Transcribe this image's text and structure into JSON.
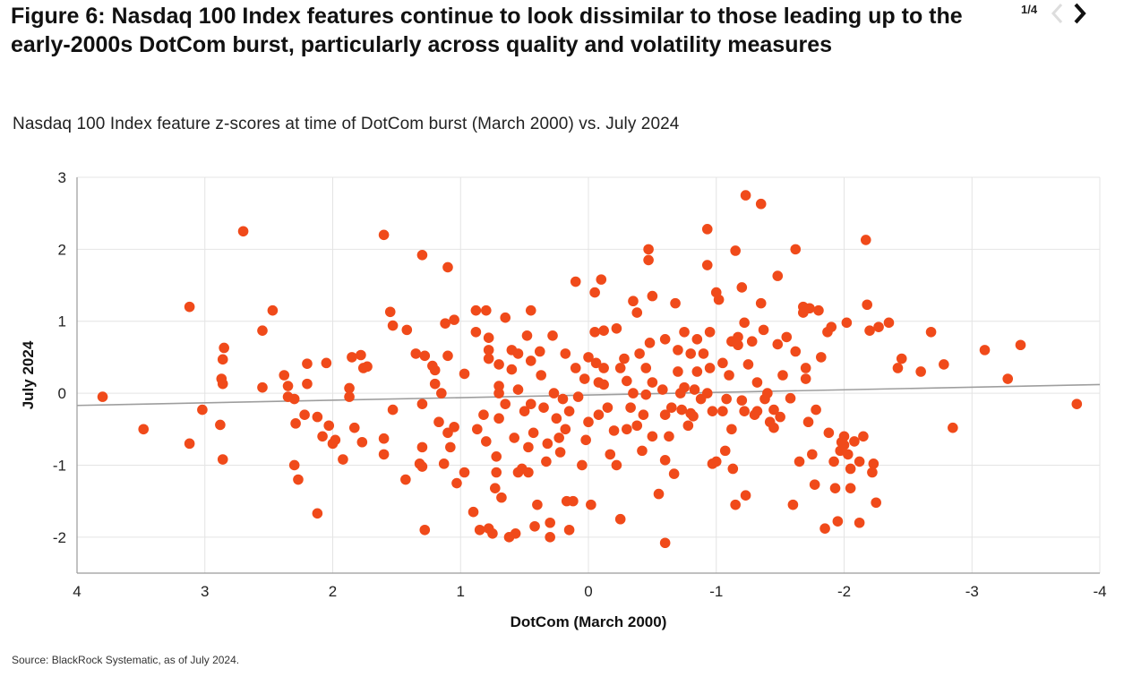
{
  "header": {
    "title": "Figure 6: Nasdaq 100 Index features continue to look dissimilar to those leading up to the early-2000s DotCom burst, particularly across quality and volatility measures",
    "page_indicator": "1/4",
    "prev_icon": "chevron-left-icon",
    "next_icon": "chevron-right-icon"
  },
  "subtitle": "Nasdaq 100 Index feature z-scores at time of DotCom burst (March 2000) vs. July 2024",
  "source": "Source: BlackRock Systematic, as of July 2024.",
  "colors": {
    "points": "#f04a1a",
    "trendline": "#9e9e9e",
    "grid": "#e4e4e4",
    "axis": "#9a9a9a"
  },
  "chart_data": {
    "type": "scatter",
    "xlabel": "DotCom (March 2000)",
    "ylabel": "July 2024",
    "xlim": [
      4,
      -4
    ],
    "ylim": [
      -2.5,
      3
    ],
    "x_reversed": true,
    "grid": true,
    "xticks": [
      4,
      3,
      2,
      1,
      0,
      -1,
      -2,
      -3,
      -4
    ],
    "xtick_labels": [
      "4",
      "3",
      "2",
      "1",
      "0",
      "-1",
      "-2",
      "-3",
      "-4"
    ],
    "yticks": [
      3,
      2,
      1,
      0,
      -1,
      -2
    ],
    "ytick_labels": [
      "3",
      "2",
      "1",
      "0",
      "-1",
      "-2"
    ],
    "trendline": {
      "x": [
        4,
        -4
      ],
      "y": [
        -0.17,
        0.12
      ]
    },
    "points": [
      [
        3.8,
        -0.05
      ],
      [
        3.48,
        -0.5
      ],
      [
        3.12,
        1.2
      ],
      [
        3.12,
        -0.7
      ],
      [
        3.02,
        -0.23
      ],
      [
        2.7,
        2.25
      ],
      [
        2.85,
        0.63
      ],
      [
        2.86,
        0.47
      ],
      [
        2.87,
        0.2
      ],
      [
        2.86,
        0.13
      ],
      [
        2.88,
        -0.44
      ],
      [
        2.86,
        -0.92
      ],
      [
        2.55,
        0.87
      ],
      [
        2.47,
        1.15
      ],
      [
        2.55,
        0.08
      ],
      [
        2.38,
        0.25
      ],
      [
        2.35,
        0.1
      ],
      [
        2.35,
        -0.05
      ],
      [
        2.3,
        -0.08
      ],
      [
        2.29,
        -0.42
      ],
      [
        2.3,
        -1.0
      ],
      [
        2.27,
        -1.2
      ],
      [
        2.22,
        -0.3
      ],
      [
        2.2,
        0.41
      ],
      [
        2.2,
        0.13
      ],
      [
        2.12,
        -0.33
      ],
      [
        2.12,
        -1.67
      ],
      [
        2.08,
        -0.6
      ],
      [
        2.05,
        0.42
      ],
      [
        2.03,
        -0.45
      ],
      [
        2.0,
        -0.7
      ],
      [
        1.98,
        -0.65
      ],
      [
        1.92,
        -0.92
      ],
      [
        1.87,
        0.07
      ],
      [
        1.87,
        -0.05
      ],
      [
        1.85,
        0.5
      ],
      [
        1.83,
        -0.48
      ],
      [
        1.78,
        0.53
      ],
      [
        1.77,
        -0.68
      ],
      [
        1.76,
        0.35
      ],
      [
        1.73,
        0.37
      ],
      [
        1.6,
        2.2
      ],
      [
        1.6,
        -0.63
      ],
      [
        1.6,
        -0.85
      ],
      [
        1.55,
        1.13
      ],
      [
        1.53,
        0.94
      ],
      [
        1.53,
        -0.23
      ],
      [
        1.42,
        0.88
      ],
      [
        1.43,
        -1.2
      ],
      [
        1.35,
        0.55
      ],
      [
        1.3,
        1.92
      ],
      [
        1.3,
        -0.15
      ],
      [
        1.28,
        0.52
      ],
      [
        1.32,
        -0.98
      ],
      [
        1.3,
        -1.02
      ],
      [
        1.3,
        -0.75
      ],
      [
        1.28,
        -1.9
      ],
      [
        1.22,
        0.38
      ],
      [
        1.2,
        0.32
      ],
      [
        1.2,
        0.13
      ],
      [
        1.17,
        -0.4
      ],
      [
        1.15,
        0.0
      ],
      [
        1.13,
        -0.98
      ],
      [
        1.1,
        1.75
      ],
      [
        1.12,
        0.97
      ],
      [
        1.1,
        0.52
      ],
      [
        1.1,
        -0.55
      ],
      [
        1.08,
        -0.75
      ],
      [
        1.05,
        1.02
      ],
      [
        1.05,
        -0.47
      ],
      [
        1.03,
        -1.25
      ],
      [
        0.97,
        0.27
      ],
      [
        0.97,
        -1.1
      ],
      [
        0.9,
        -1.65
      ],
      [
        0.88,
        1.15
      ],
      [
        0.88,
        0.85
      ],
      [
        0.87,
        -0.5
      ],
      [
        0.85,
        -1.9
      ],
      [
        0.82,
        -0.3
      ],
      [
        0.8,
        1.15
      ],
      [
        0.8,
        -0.67
      ],
      [
        0.78,
        0.77
      ],
      [
        0.78,
        0.6
      ],
      [
        0.78,
        0.48
      ],
      [
        0.78,
        -1.88
      ],
      [
        0.75,
        -1.95
      ],
      [
        0.73,
        -1.32
      ],
      [
        0.72,
        -0.88
      ],
      [
        0.72,
        -1.1
      ],
      [
        0.7,
        0.4
      ],
      [
        0.7,
        0.1
      ],
      [
        0.7,
        0.0
      ],
      [
        0.7,
        -0.35
      ],
      [
        0.68,
        -1.45
      ],
      [
        0.65,
        1.05
      ],
      [
        0.65,
        -0.15
      ],
      [
        0.62,
        -2.0
      ],
      [
        0.6,
        0.6
      ],
      [
        0.6,
        0.33
      ],
      [
        0.58,
        -0.62
      ],
      [
        0.57,
        -1.95
      ],
      [
        0.55,
        0.55
      ],
      [
        0.55,
        0.05
      ],
      [
        0.55,
        -1.1
      ],
      [
        0.52,
        -1.05
      ],
      [
        0.5,
        -0.25
      ],
      [
        0.48,
        0.8
      ],
      [
        0.47,
        -0.75
      ],
      [
        0.47,
        -1.1
      ],
      [
        0.45,
        1.15
      ],
      [
        0.45,
        0.45
      ],
      [
        0.45,
        -0.15
      ],
      [
        0.43,
        -0.55
      ],
      [
        0.42,
        -1.85
      ],
      [
        0.4,
        -1.55
      ],
      [
        0.38,
        0.58
      ],
      [
        0.37,
        0.25
      ],
      [
        0.35,
        -0.2
      ],
      [
        0.33,
        -0.95
      ],
      [
        0.32,
        -0.7
      ],
      [
        0.3,
        -2.0
      ],
      [
        0.3,
        -1.8
      ],
      [
        0.28,
        0.8
      ],
      [
        0.27,
        0.0
      ],
      [
        0.25,
        -0.35
      ],
      [
        0.23,
        -0.62
      ],
      [
        0.22,
        -0.82
      ],
      [
        0.2,
        -0.08
      ],
      [
        0.18,
        0.55
      ],
      [
        0.18,
        -0.5
      ],
      [
        0.17,
        -1.5
      ],
      [
        0.15,
        -1.9
      ],
      [
        0.15,
        -0.25
      ],
      [
        0.12,
        -1.5
      ],
      [
        0.1,
        1.55
      ],
      [
        0.1,
        0.35
      ],
      [
        0.08,
        -0.05
      ],
      [
        0.05,
        -1.0
      ],
      [
        0.03,
        0.2
      ],
      [
        0.02,
        -0.65
      ],
      [
        0.0,
        0.5
      ],
      [
        0.0,
        -0.4
      ],
      [
        -0.02,
        -1.55
      ],
      [
        -0.05,
        1.4
      ],
      [
        -0.05,
        0.85
      ],
      [
        -0.06,
        0.42
      ],
      [
        -0.08,
        0.15
      ],
      [
        -0.08,
        -0.3
      ],
      [
        -0.1,
        1.58
      ],
      [
        -0.12,
        0.87
      ],
      [
        -0.12,
        0.35
      ],
      [
        -0.12,
        0.12
      ],
      [
        -0.15,
        -0.2
      ],
      [
        -0.17,
        -0.85
      ],
      [
        -0.2,
        -0.52
      ],
      [
        -0.22,
        0.9
      ],
      [
        -0.22,
        -1.0
      ],
      [
        -0.25,
        0.35
      ],
      [
        -0.25,
        -1.75
      ],
      [
        -0.28,
        0.48
      ],
      [
        -0.3,
        0.17
      ],
      [
        -0.3,
        -0.5
      ],
      [
        -0.33,
        -0.2
      ],
      [
        -0.35,
        1.28
      ],
      [
        -0.35,
        0.0
      ],
      [
        -0.38,
        1.12
      ],
      [
        -0.38,
        -0.45
      ],
      [
        -0.4,
        0.55
      ],
      [
        -0.42,
        -0.8
      ],
      [
        -0.43,
        -0.3
      ],
      [
        -0.45,
        0.35
      ],
      [
        -0.45,
        -0.02
      ],
      [
        -0.47,
        2.0
      ],
      [
        -0.47,
        1.85
      ],
      [
        -0.48,
        0.7
      ],
      [
        -0.5,
        1.35
      ],
      [
        -0.5,
        0.15
      ],
      [
        -0.5,
        -0.6
      ],
      [
        -0.55,
        -1.4
      ],
      [
        -0.58,
        0.05
      ],
      [
        -0.6,
        0.75
      ],
      [
        -0.6,
        -0.3
      ],
      [
        -0.6,
        -0.93
      ],
      [
        -0.6,
        -2.08
      ],
      [
        -0.63,
        -0.6
      ],
      [
        -0.65,
        -0.2
      ],
      [
        -0.67,
        -1.12
      ],
      [
        -0.68,
        1.25
      ],
      [
        -0.7,
        0.6
      ],
      [
        -0.7,
        0.3
      ],
      [
        -0.72,
        0.0
      ],
      [
        -0.73,
        -0.23
      ],
      [
        -0.75,
        0.85
      ],
      [
        -0.75,
        0.08
      ],
      [
        -0.78,
        -0.45
      ],
      [
        -0.8,
        0.55
      ],
      [
        -0.8,
        -0.28
      ],
      [
        -0.82,
        -0.32
      ],
      [
        -0.83,
        0.05
      ],
      [
        -0.85,
        0.3
      ],
      [
        -0.85,
        0.75
      ],
      [
        -0.88,
        -0.08
      ],
      [
        -0.9,
        0.55
      ],
      [
        -0.93,
        2.28
      ],
      [
        -0.93,
        1.78
      ],
      [
        -0.93,
        0.0
      ],
      [
        -0.95,
        0.85
      ],
      [
        -0.95,
        0.35
      ],
      [
        -0.97,
        -0.25
      ],
      [
        -0.97,
        -0.98
      ],
      [
        -1.0,
        1.4
      ],
      [
        -1.0,
        -0.95
      ],
      [
        -1.02,
        1.3
      ],
      [
        -1.05,
        0.42
      ],
      [
        -1.05,
        -0.25
      ],
      [
        -1.07,
        -0.8
      ],
      [
        -1.08,
        -0.08
      ],
      [
        -1.1,
        0.25
      ],
      [
        -1.12,
        0.72
      ],
      [
        -1.12,
        -0.5
      ],
      [
        -1.13,
        -1.05
      ],
      [
        -1.15,
        1.98
      ],
      [
        -1.15,
        -1.55
      ],
      [
        -1.17,
        0.78
      ],
      [
        -1.17,
        0.67
      ],
      [
        -1.2,
        1.47
      ],
      [
        -1.2,
        -0.1
      ],
      [
        -1.22,
        0.98
      ],
      [
        -1.22,
        -0.25
      ],
      [
        -1.23,
        2.75
      ],
      [
        -1.23,
        -1.42
      ],
      [
        -1.25,
        0.4
      ],
      [
        -1.28,
        0.72
      ],
      [
        -1.3,
        -0.3
      ],
      [
        -1.32,
        -0.25
      ],
      [
        -1.32,
        0.15
      ],
      [
        -1.35,
        2.63
      ],
      [
        -1.35,
        1.25
      ],
      [
        -1.37,
        0.88
      ],
      [
        -1.38,
        -0.08
      ],
      [
        -1.4,
        0.0
      ],
      [
        -1.42,
        -0.4
      ],
      [
        -1.45,
        -0.23
      ],
      [
        -1.45,
        -0.48
      ],
      [
        -1.48,
        1.63
      ],
      [
        -1.48,
        0.68
      ],
      [
        -1.5,
        -0.33
      ],
      [
        -1.52,
        0.25
      ],
      [
        -1.55,
        0.78
      ],
      [
        -1.58,
        -0.07
      ],
      [
        -1.6,
        -1.55
      ],
      [
        -1.62,
        2.0
      ],
      [
        -1.62,
        0.58
      ],
      [
        -1.65,
        -0.95
      ],
      [
        -1.68,
        1.2
      ],
      [
        -1.68,
        1.12
      ],
      [
        -1.7,
        0.35
      ],
      [
        -1.7,
        0.2
      ],
      [
        -1.72,
        -0.4
      ],
      [
        -1.73,
        1.18
      ],
      [
        -1.75,
        -0.85
      ],
      [
        -1.77,
        -1.27
      ],
      [
        -1.78,
        -0.23
      ],
      [
        -1.8,
        1.15
      ],
      [
        -1.82,
        0.5
      ],
      [
        -1.85,
        -1.88
      ],
      [
        -1.87,
        0.85
      ],
      [
        -1.88,
        -0.55
      ],
      [
        -1.9,
        0.92
      ],
      [
        -1.92,
        -0.95
      ],
      [
        -1.93,
        -1.32
      ],
      [
        -1.95,
        -1.78
      ],
      [
        -1.97,
        -0.8
      ],
      [
        -1.98,
        -0.68
      ],
      [
        -2.0,
        -0.6
      ],
      [
        -2.0,
        -0.72
      ],
      [
        -2.02,
        0.98
      ],
      [
        -2.03,
        -0.85
      ],
      [
        -2.05,
        -1.32
      ],
      [
        -2.05,
        -1.05
      ],
      [
        -2.08,
        -0.67
      ],
      [
        -2.12,
        -1.8
      ],
      [
        -2.12,
        -0.95
      ],
      [
        -2.15,
        -0.6
      ],
      [
        -2.17,
        2.13
      ],
      [
        -2.18,
        1.23
      ],
      [
        -2.2,
        0.87
      ],
      [
        -2.22,
        -1.1
      ],
      [
        -2.23,
        -0.98
      ],
      [
        -2.25,
        -1.52
      ],
      [
        -2.27,
        0.92
      ],
      [
        -2.35,
        0.98
      ],
      [
        -2.42,
        0.35
      ],
      [
        -2.45,
        0.48
      ],
      [
        -2.6,
        0.3
      ],
      [
        -2.68,
        0.85
      ],
      [
        -2.78,
        0.4
      ],
      [
        -2.85,
        -0.48
      ],
      [
        -3.1,
        0.6
      ],
      [
        -3.28,
        0.2
      ],
      [
        -3.38,
        0.67
      ],
      [
        -3.82,
        -0.15
      ]
    ]
  }
}
